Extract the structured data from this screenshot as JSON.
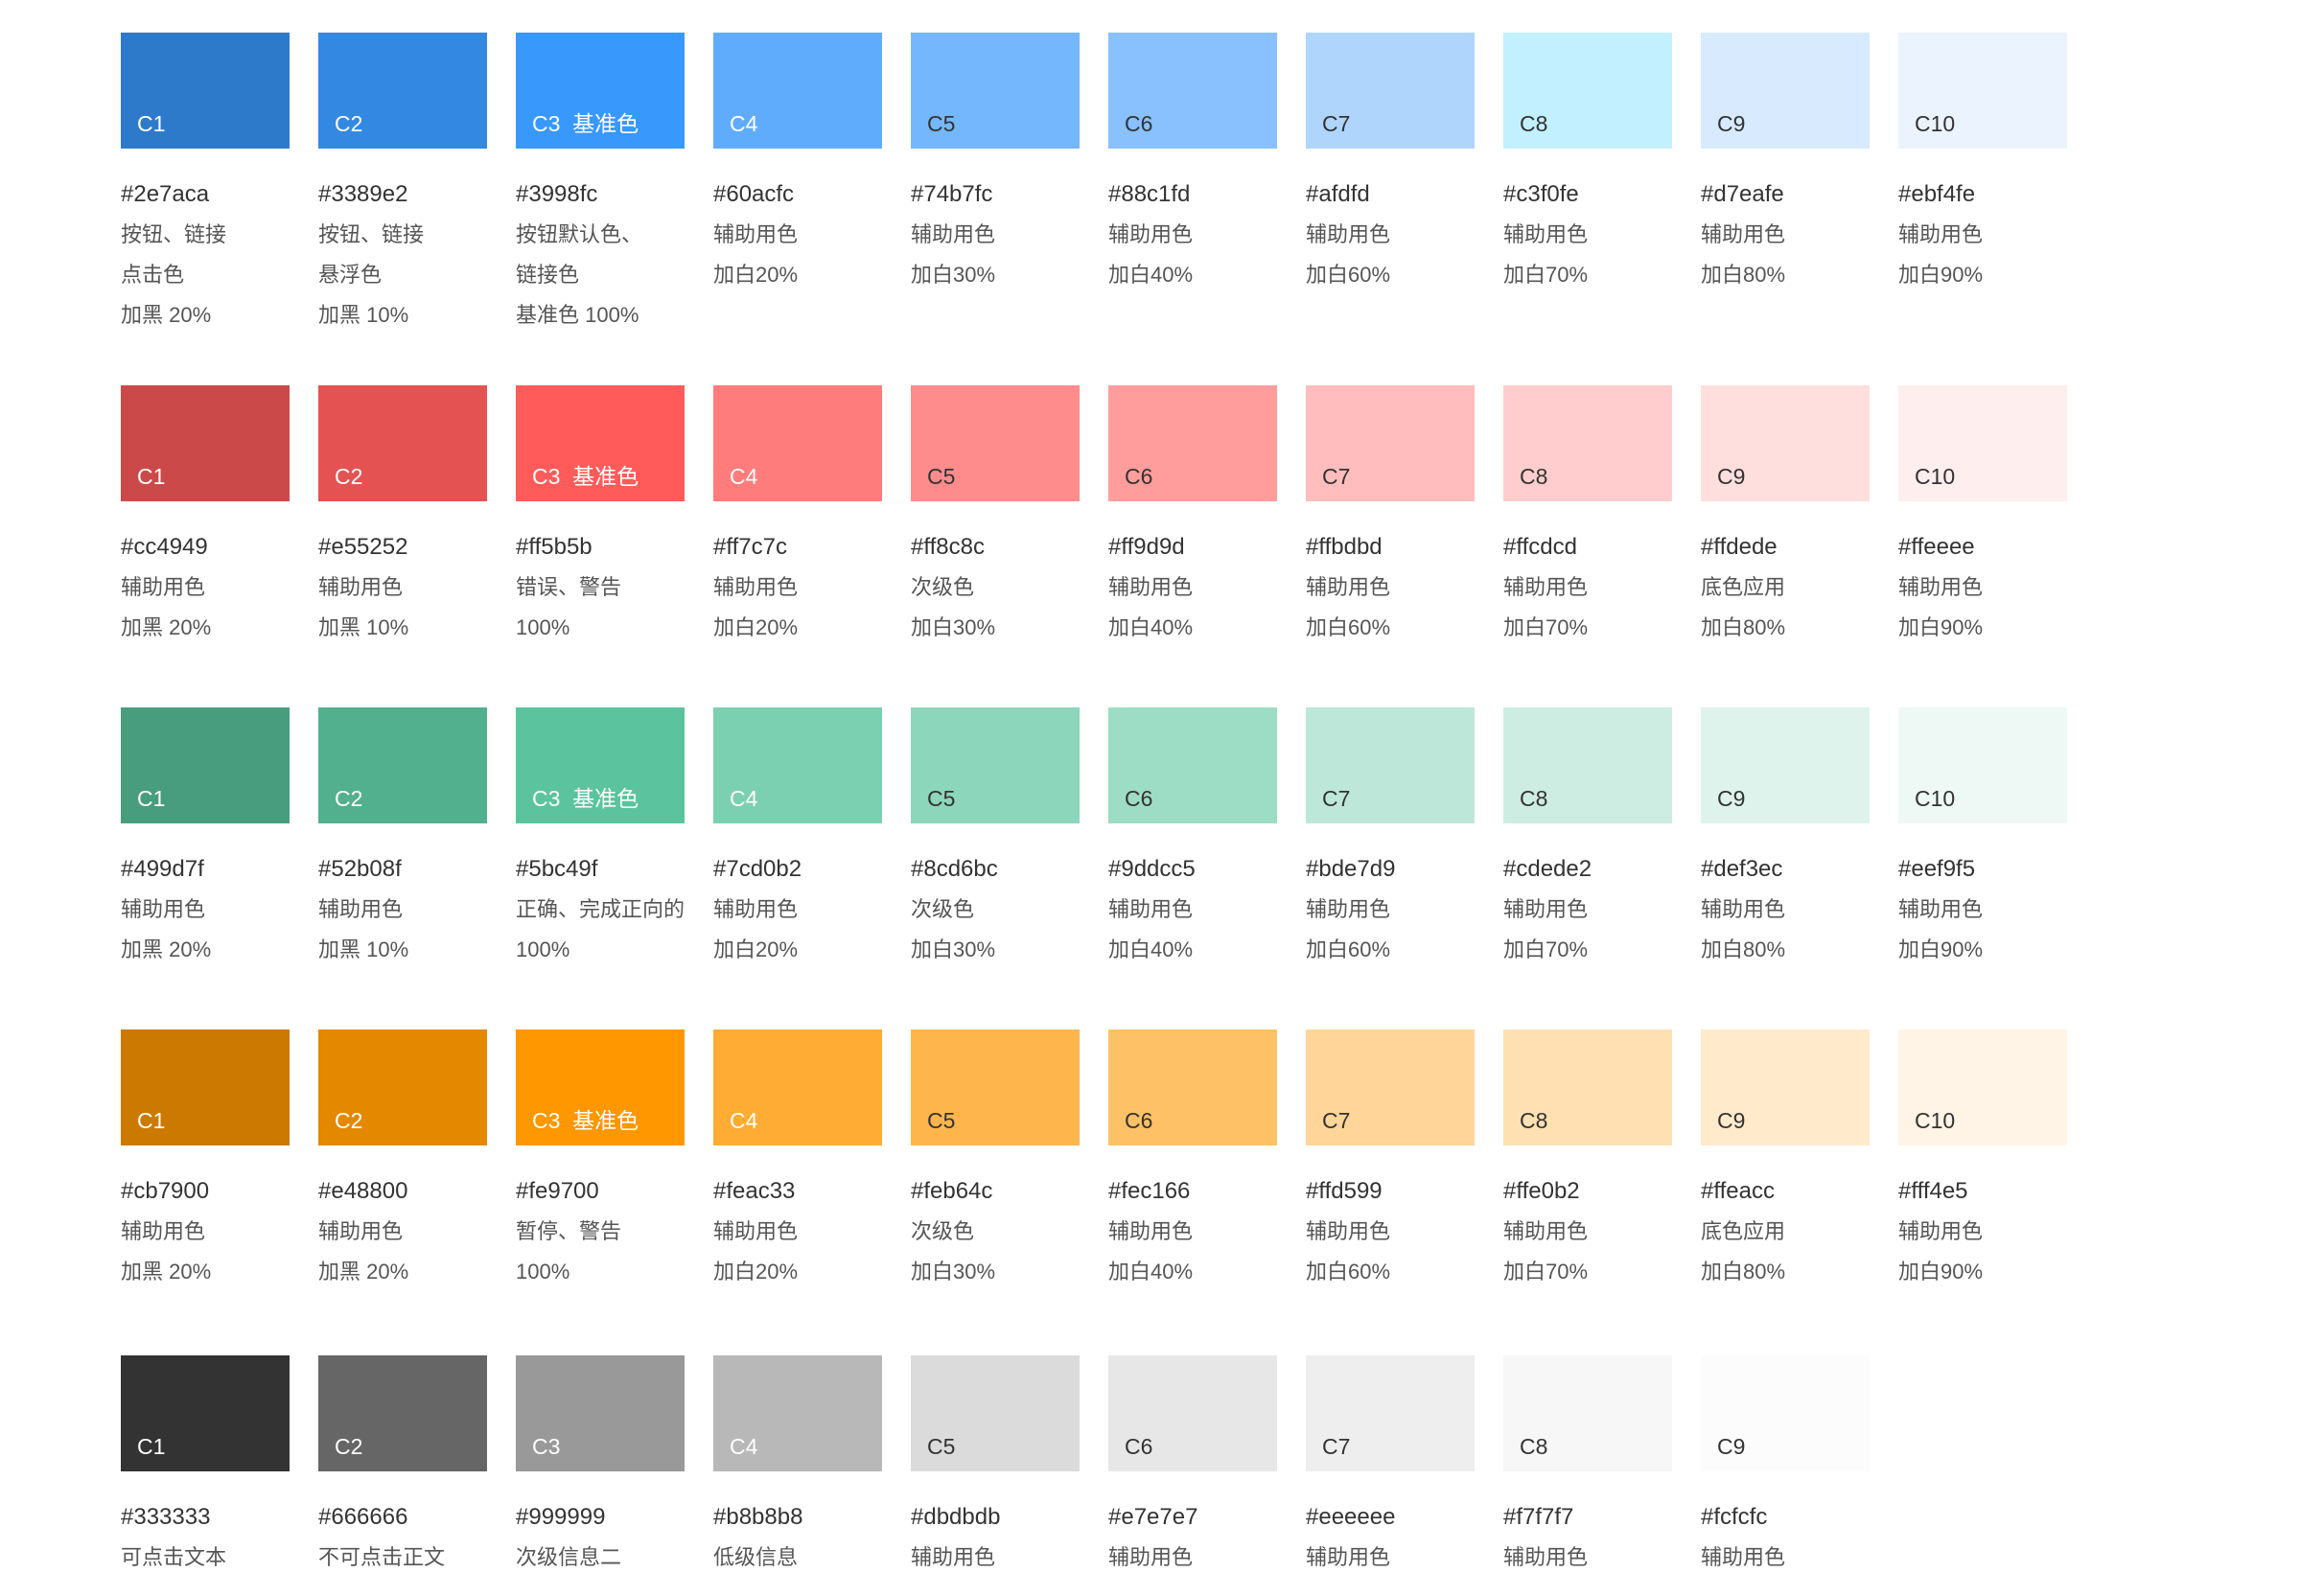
{
  "rows": [
    {
      "name": "blue",
      "swatches": [
        {
          "label": "C1",
          "color": "#2e7aca",
          "label_color": "#ffffff",
          "hex": "#2e7aca",
          "lines": [
            "按钮、链接",
            "点击色",
            "加黑 20%"
          ]
        },
        {
          "label": "C2",
          "color": "#3389e2",
          "label_color": "#ffffff",
          "hex": "#3389e2",
          "lines": [
            "按钮、链接",
            "悬浮色",
            "加黑 10%"
          ]
        },
        {
          "label": "C3  基准色",
          "color": "#3998fc",
          "label_color": "#ffffff",
          "hex": "#3998fc",
          "lines": [
            "按钮默认色、",
            "链接色",
            "基准色 100%"
          ]
        },
        {
          "label": "C4",
          "color": "#60acfc",
          "label_color": "#ffffff",
          "hex": "#60acfc",
          "lines": [
            "辅助用色",
            "加白20%"
          ]
        },
        {
          "label": "C5",
          "color": "#74b7fc",
          "label_color": "#333333",
          "hex": "#74b7fc",
          "lines": [
            "辅助用色",
            "加白30%"
          ]
        },
        {
          "label": "C6",
          "color": "#88c1fd",
          "label_color": "#333333",
          "hex": "#88c1fd",
          "lines": [
            "辅助用色",
            "加白40%"
          ]
        },
        {
          "label": "C7",
          "color": "#afdfd",
          "label_color": "#333333",
          "hex": "#afdfd",
          "lines": [
            "辅助用色",
            "加白60%"
          ]
        },
        {
          "label": "C8",
          "color": "#c3f0fe",
          "label_color": "#333333",
          "hex": "#c3f0fe",
          "lines": [
            "辅助用色",
            "加白70%"
          ]
        },
        {
          "label": "C9",
          "color": "#d7eafe",
          "label_color": "#333333",
          "hex": "#d7eafe",
          "lines": [
            "辅助用色",
            "加白80%"
          ]
        },
        {
          "label": "C10",
          "color": "#ebf4fe",
          "label_color": "#333333",
          "hex": "#ebf4fe",
          "lines": [
            "辅助用色",
            "加白90%"
          ]
        }
      ]
    },
    {
      "name": "red",
      "swatches": [
        {
          "label": "C1",
          "color": "#cc4949",
          "label_color": "#ffffff",
          "hex": "#cc4949",
          "lines": [
            "辅助用色",
            "加黑 20%"
          ]
        },
        {
          "label": "C2",
          "color": "#e55252",
          "label_color": "#ffffff",
          "hex": "#e55252",
          "lines": [
            "辅助用色",
            "加黑 10%"
          ]
        },
        {
          "label": "C3  基准色",
          "color": "#ff5b5b",
          "label_color": "#ffffff",
          "hex": "#ff5b5b",
          "lines": [
            "错误、警告",
            "100%"
          ]
        },
        {
          "label": "C4",
          "color": "#ff7c7c",
          "label_color": "#ffffff",
          "hex": "#ff7c7c",
          "lines": [
            "辅助用色",
            "加白20%"
          ]
        },
        {
          "label": "C5",
          "color": "#ff8c8c",
          "label_color": "#333333",
          "hex": "#ff8c8c",
          "lines": [
            "次级色",
            "加白30%"
          ]
        },
        {
          "label": "C6",
          "color": "#ff9d9d",
          "label_color": "#333333",
          "hex": "#ff9d9d",
          "lines": [
            "辅助用色",
            "加白40%"
          ]
        },
        {
          "label": "C7",
          "color": "#ffbdbd",
          "label_color": "#333333",
          "hex": "#ffbdbd",
          "lines": [
            "辅助用色",
            "加白60%"
          ]
        },
        {
          "label": "C8",
          "color": "#ffcdcd",
          "label_color": "#333333",
          "hex": "#ffcdcd",
          "lines": [
            "辅助用色",
            "加白70%"
          ]
        },
        {
          "label": "C9",
          "color": "#ffdede",
          "label_color": "#333333",
          "hex": "#ffdede",
          "lines": [
            "底色应用",
            "加白80%"
          ]
        },
        {
          "label": "C10",
          "color": "#ffeeee",
          "label_color": "#333333",
          "hex": "#ffeeee",
          "lines": [
            "辅助用色",
            "加白90%"
          ]
        }
      ]
    },
    {
      "name": "green",
      "swatches": [
        {
          "label": "C1",
          "color": "#499d7f",
          "label_color": "#ffffff",
          "hex": "#499d7f",
          "lines": [
            "辅助用色",
            "加黑 20%"
          ]
        },
        {
          "label": "C2",
          "color": "#52b08f",
          "label_color": "#ffffff",
          "hex": "#52b08f",
          "lines": [
            "辅助用色",
            "加黑 10%"
          ]
        },
        {
          "label": "C3  基准色",
          "color": "#5bc49f",
          "label_color": "#ffffff",
          "hex": "#5bc49f",
          "lines": [
            "正确、完成正向的",
            "100%"
          ]
        },
        {
          "label": "C4",
          "color": "#7cd0b2",
          "label_color": "#ffffff",
          "hex": "#7cd0b2",
          "lines": [
            "辅助用色",
            "加白20%"
          ]
        },
        {
          "label": "C5",
          "color": "#8cd6bc",
          "label_color": "#333333",
          "hex": "#8cd6bc",
          "lines": [
            "次级色",
            "加白30%"
          ]
        },
        {
          "label": "C6",
          "color": "#9ddcc5",
          "label_color": "#333333",
          "hex": "#9ddcc5",
          "lines": [
            "辅助用色",
            "加白40%"
          ]
        },
        {
          "label": "C7",
          "color": "#bde7d9",
          "label_color": "#333333",
          "hex": "#bde7d9",
          "lines": [
            "辅助用色",
            "加白60%"
          ]
        },
        {
          "label": "C8",
          "color": "#cdede2",
          "label_color": "#333333",
          "hex": "#cdede2",
          "lines": [
            "辅助用色",
            "加白70%"
          ]
        },
        {
          "label": "C9",
          "color": "#def3ec",
          "label_color": "#333333",
          "hex": "#def3ec",
          "lines": [
            "辅助用色",
            "加白80%"
          ]
        },
        {
          "label": "C10",
          "color": "#eef9f5",
          "label_color": "#333333",
          "hex": "#eef9f5",
          "lines": [
            "辅助用色",
            "加白90%"
          ]
        }
      ]
    },
    {
      "name": "orange",
      "swatches": [
        {
          "label": "C1",
          "color": "#cb7900",
          "label_color": "#ffffff",
          "hex": "#cb7900",
          "lines": [
            "辅助用色",
            "加黑 20%"
          ]
        },
        {
          "label": "C2",
          "color": "#e48800",
          "label_color": "#ffffff",
          "hex": "#e48800",
          "lines": [
            "辅助用色",
            "加黑 20%"
          ]
        },
        {
          "label": "C3  基准色",
          "color": "#fe9700",
          "label_color": "#ffffff",
          "hex": "#fe9700",
          "lines": [
            "暂停、警告",
            "100%"
          ]
        },
        {
          "label": "C4",
          "color": "#feac33",
          "label_color": "#ffffff",
          "hex": "#feac33",
          "lines": [
            "辅助用色",
            "加白20%"
          ]
        },
        {
          "label": "C5",
          "color": "#feb64c",
          "label_color": "#333333",
          "hex": "#feb64c",
          "lines": [
            "次级色",
            "加白30%"
          ]
        },
        {
          "label": "C6",
          "color": "#fec166",
          "label_color": "#333333",
          "hex": "#fec166",
          "lines": [
            "辅助用色",
            "加白40%"
          ]
        },
        {
          "label": "C7",
          "color": "#ffd599",
          "label_color": "#333333",
          "hex": "#ffd599",
          "lines": [
            "辅助用色",
            "加白60%"
          ]
        },
        {
          "label": "C8",
          "color": "#ffe0b2",
          "label_color": "#333333",
          "hex": "#ffe0b2",
          "lines": [
            "辅助用色",
            "加白70%"
          ]
        },
        {
          "label": "C9",
          "color": "#ffeacc",
          "label_color": "#333333",
          "hex": "#ffeacc",
          "lines": [
            "底色应用",
            "加白80%"
          ]
        },
        {
          "label": "C10",
          "color": "#fff4e5",
          "label_color": "#333333",
          "hex": "#fff4e5",
          "lines": [
            "辅助用色",
            "加白90%"
          ]
        }
      ]
    },
    {
      "name": "gray",
      "swatches": [
        {
          "label": "C1",
          "color": "#333333",
          "label_color": "#ffffff",
          "hex": "#333333",
          "lines": [
            "可点击文本"
          ]
        },
        {
          "label": "C2",
          "color": "#666666",
          "label_color": "#ffffff",
          "hex": "#666666",
          "lines": [
            "不可点击正文"
          ]
        },
        {
          "label": "C3",
          "color": "#999999",
          "label_color": "#ffffff",
          "hex": "#999999",
          "lines": [
            "次级信息二"
          ]
        },
        {
          "label": "C4",
          "color": "#b8b8b8",
          "label_color": "#ffffff",
          "hex": "#b8b8b8",
          "lines": [
            "低级信息"
          ]
        },
        {
          "label": "C5",
          "color": "#dbdbdb",
          "label_color": "#333333",
          "hex": "#dbdbdb",
          "lines": [
            "辅助用色"
          ]
        },
        {
          "label": "C6",
          "color": "#e7e7e7",
          "label_color": "#333333",
          "hex": "#e7e7e7",
          "lines": [
            "辅助用色"
          ]
        },
        {
          "label": "C7",
          "color": "#eeeeee",
          "label_color": "#333333",
          "hex": "#eeeeee",
          "lines": [
            "辅助用色"
          ]
        },
        {
          "label": "C8",
          "color": "#f7f7f7",
          "label_color": "#333333",
          "hex": "#f7f7f7",
          "lines": [
            "辅助用色"
          ]
        },
        {
          "label": "C9",
          "color": "#fcfcfc",
          "label_color": "#333333",
          "hex": "#fcfcfc",
          "lines": [
            "辅助用色"
          ]
        }
      ]
    }
  ]
}
